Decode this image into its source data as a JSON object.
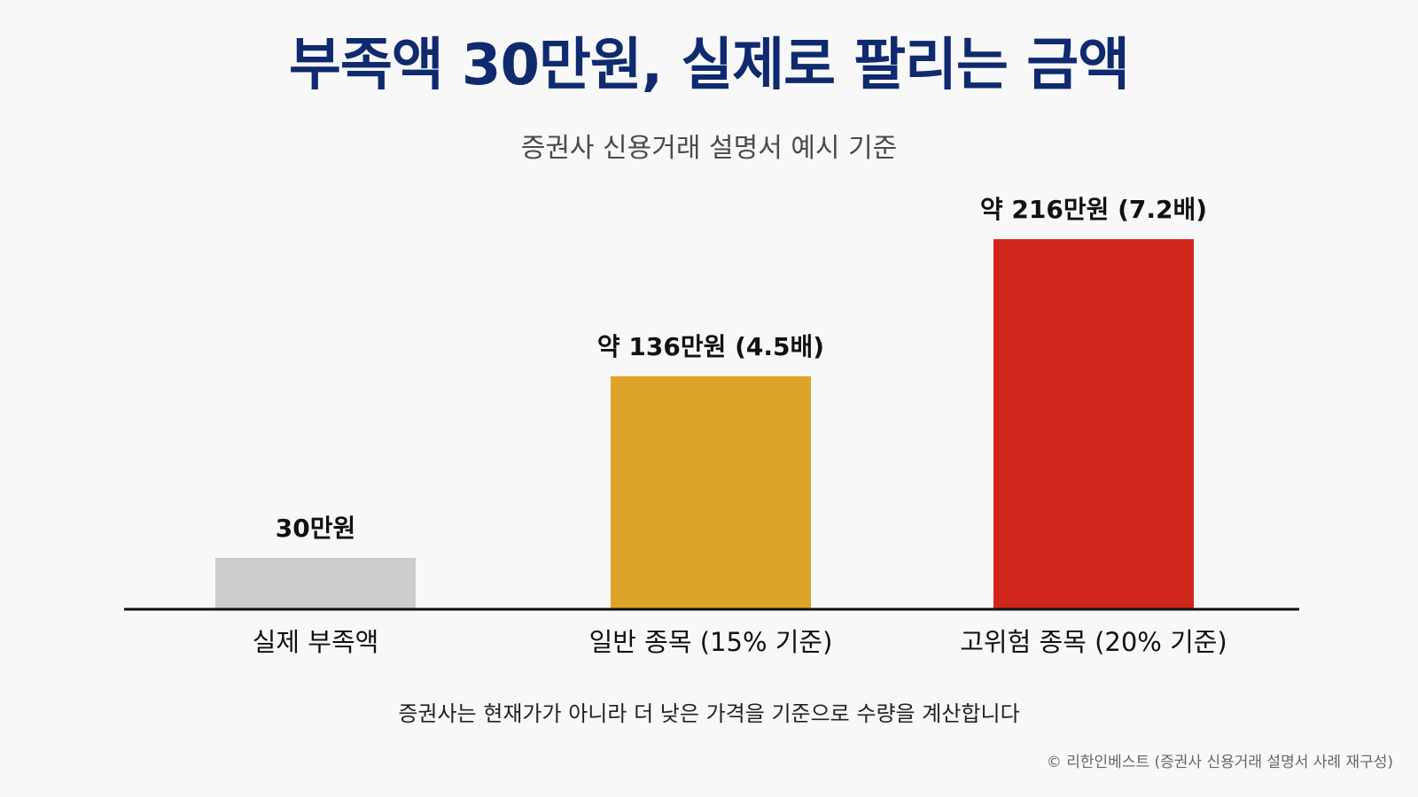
{
  "title": "부족액 30만원, 실제로 팔리는 금액",
  "subtitle": "증권사 신용거래 설명서 예시 기준",
  "footnote": "증권사는 현재가가 아니라 더 낮은 가격을 기준으로 수량을 계산합니다",
  "credit": "© 리한인베스트 (증권사 신용거래 설명서 사례 재구성)",
  "colors": {
    "title": "#0f2a6e",
    "axis": "#111111",
    "bars": [
      "#cccccc",
      "#dea42a",
      "#d0261c"
    ]
  },
  "chart_data": {
    "type": "bar",
    "title": "",
    "xlabel": "",
    "ylabel": "",
    "categories": [
      "실제 부족액",
      "일반 종목 (15% 기준)",
      "고위험 종목 (20% 기준)"
    ],
    "values": [
      30,
      136,
      216
    ],
    "value_labels": [
      "30만원",
      "약 136만원 (4.5배)",
      "약 216만원 (7.2배)"
    ],
    "ylim": [
      0,
      240
    ],
    "grid": false,
    "legend": "none"
  }
}
